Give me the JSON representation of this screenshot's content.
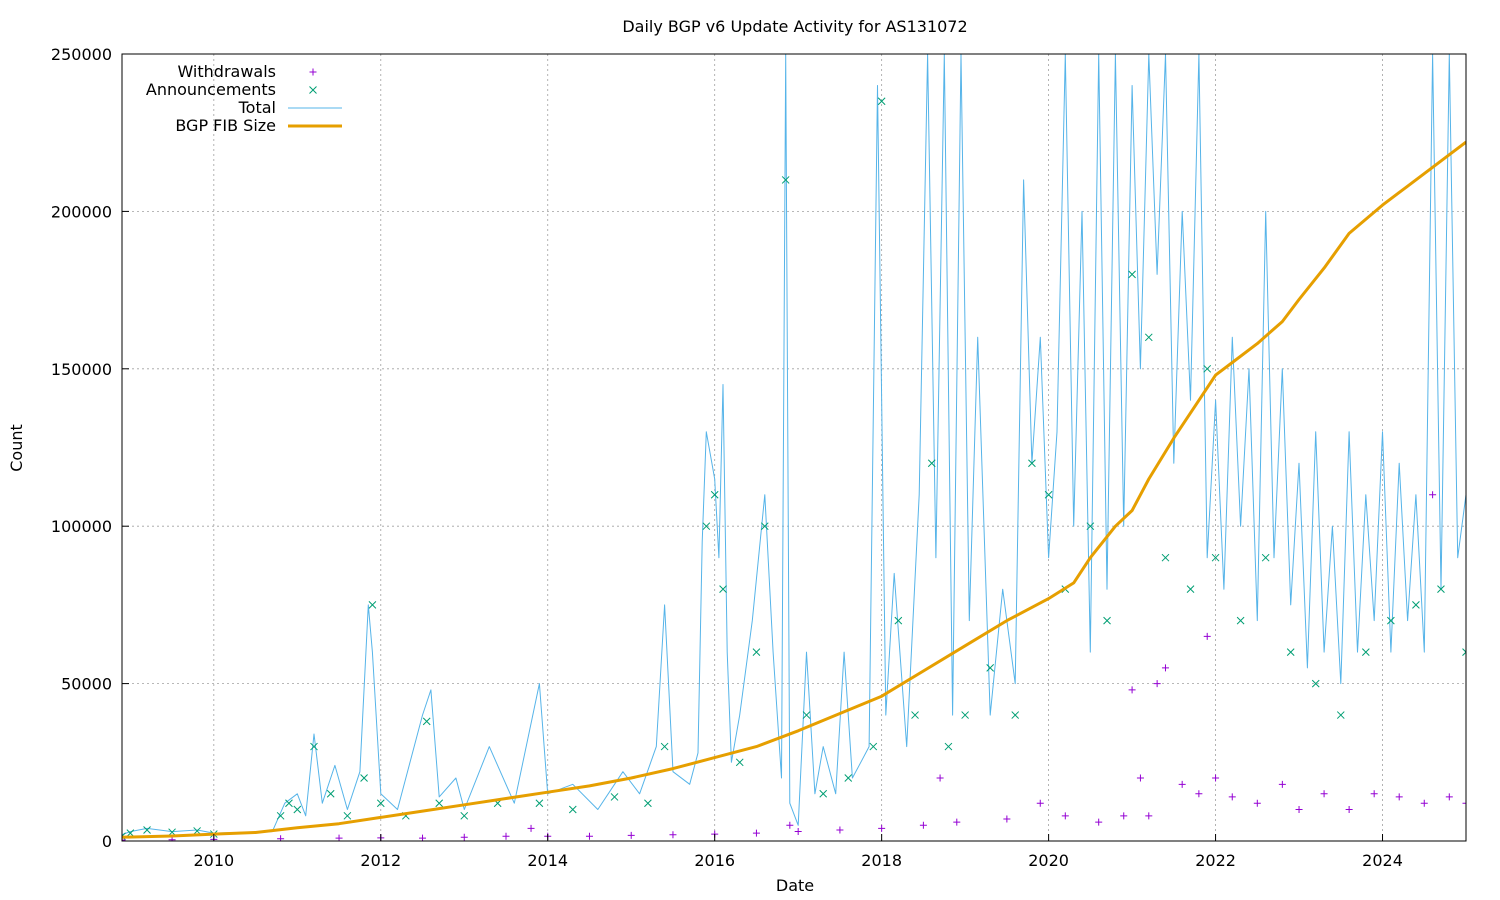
{
  "chart_data": {
    "type": "scatter",
    "title": "Daily BGP v6 Update Activity for AS131072",
    "xlabel": "Date",
    "ylabel": "Count",
    "xlim": [
      2008.9,
      2025.0
    ],
    "ylim": [
      0,
      250000
    ],
    "x_ticks": [
      "2010",
      "2012",
      "2014",
      "2016",
      "2018",
      "2020",
      "2022",
      "2024"
    ],
    "y_ticks": [
      "0",
      "50000",
      "100000",
      "150000",
      "200000",
      "250000"
    ],
    "grid": true,
    "legend_position": "top-left",
    "legend": [
      {
        "label": "Withdrawals",
        "marker": "+",
        "color": "#9400d3"
      },
      {
        "label": "Announcements",
        "marker": "x",
        "color": "#009e73"
      },
      {
        "label": "Total",
        "marker": "line",
        "color": "#56b4e9"
      },
      {
        "label": "BGP FIB Size",
        "marker": "thick-line",
        "color": "#e69f00"
      }
    ],
    "series": [
      {
        "name": "Total",
        "color": "#56b4e9",
        "points": [
          [
            2008.9,
            2000
          ],
          [
            2009.0,
            3000
          ],
          [
            2009.2,
            4000
          ],
          [
            2009.5,
            3000
          ],
          [
            2009.8,
            3500
          ],
          [
            2010.0,
            2500
          ],
          [
            2010.7,
            3000
          ],
          [
            2010.85,
            12000
          ],
          [
            2011.0,
            15000
          ],
          [
            2011.1,
            8000
          ],
          [
            2011.2,
            34000
          ],
          [
            2011.3,
            12000
          ],
          [
            2011.45,
            24000
          ],
          [
            2011.6,
            10000
          ],
          [
            2011.75,
            22000
          ],
          [
            2011.85,
            75000
          ],
          [
            2011.9,
            60000
          ],
          [
            2012.0,
            15000
          ],
          [
            2012.2,
            10000
          ],
          [
            2012.5,
            40000
          ],
          [
            2012.6,
            48000
          ],
          [
            2012.7,
            14000
          ],
          [
            2012.9,
            20000
          ],
          [
            2013.0,
            10000
          ],
          [
            2013.3,
            30000
          ],
          [
            2013.6,
            12000
          ],
          [
            2013.9,
            50000
          ],
          [
            2014.0,
            15000
          ],
          [
            2014.3,
            18000
          ],
          [
            2014.6,
            10000
          ],
          [
            2014.9,
            22000
          ],
          [
            2015.1,
            15000
          ],
          [
            2015.3,
            30000
          ],
          [
            2015.4,
            75000
          ],
          [
            2015.5,
            22000
          ],
          [
            2015.7,
            18000
          ],
          [
            2015.8,
            28000
          ],
          [
            2015.85,
            95000
          ],
          [
            2015.9,
            130000
          ],
          [
            2016.0,
            115000
          ],
          [
            2016.05,
            90000
          ],
          [
            2016.1,
            145000
          ],
          [
            2016.15,
            60000
          ],
          [
            2016.2,
            25000
          ],
          [
            2016.3,
            40000
          ],
          [
            2016.45,
            70000
          ],
          [
            2016.6,
            110000
          ],
          [
            2016.7,
            60000
          ],
          [
            2016.8,
            20000
          ],
          [
            2016.85,
            250000
          ],
          [
            2016.9,
            12000
          ],
          [
            2017.0,
            5000
          ],
          [
            2017.1,
            60000
          ],
          [
            2017.2,
            15000
          ],
          [
            2017.3,
            30000
          ],
          [
            2017.45,
            15000
          ],
          [
            2017.55,
            60000
          ],
          [
            2017.65,
            20000
          ],
          [
            2017.75,
            25000
          ],
          [
            2017.85,
            30000
          ],
          [
            2017.95,
            240000
          ],
          [
            2018.05,
            40000
          ],
          [
            2018.15,
            85000
          ],
          [
            2018.3,
            30000
          ],
          [
            2018.45,
            110000
          ],
          [
            2018.55,
            250000
          ],
          [
            2018.65,
            90000
          ],
          [
            2018.75,
            250000
          ],
          [
            2018.85,
            40000
          ],
          [
            2018.95,
            250000
          ],
          [
            2019.05,
            70000
          ],
          [
            2019.15,
            160000
          ],
          [
            2019.3,
            40000
          ],
          [
            2019.45,
            80000
          ],
          [
            2019.6,
            50000
          ],
          [
            2019.7,
            210000
          ],
          [
            2019.8,
            120000
          ],
          [
            2019.9,
            160000
          ],
          [
            2020.0,
            90000
          ],
          [
            2020.1,
            130000
          ],
          [
            2020.2,
            250000
          ],
          [
            2020.3,
            100000
          ],
          [
            2020.4,
            200000
          ],
          [
            2020.5,
            60000
          ],
          [
            2020.6,
            250000
          ],
          [
            2020.7,
            80000
          ],
          [
            2020.8,
            250000
          ],
          [
            2020.9,
            100000
          ],
          [
            2021.0,
            240000
          ],
          [
            2021.1,
            150000
          ],
          [
            2021.2,
            250000
          ],
          [
            2021.3,
            180000
          ],
          [
            2021.4,
            250000
          ],
          [
            2021.5,
            120000
          ],
          [
            2021.6,
            200000
          ],
          [
            2021.7,
            140000
          ],
          [
            2021.8,
            250000
          ],
          [
            2021.9,
            90000
          ],
          [
            2022.0,
            140000
          ],
          [
            2022.1,
            80000
          ],
          [
            2022.2,
            160000
          ],
          [
            2022.3,
            100000
          ],
          [
            2022.4,
            150000
          ],
          [
            2022.5,
            70000
          ],
          [
            2022.6,
            200000
          ],
          [
            2022.7,
            90000
          ],
          [
            2022.8,
            150000
          ],
          [
            2022.9,
            75000
          ],
          [
            2023.0,
            120000
          ],
          [
            2023.1,
            55000
          ],
          [
            2023.2,
            130000
          ],
          [
            2023.3,
            60000
          ],
          [
            2023.4,
            100000
          ],
          [
            2023.5,
            50000
          ],
          [
            2023.6,
            130000
          ],
          [
            2023.7,
            60000
          ],
          [
            2023.8,
            110000
          ],
          [
            2023.9,
            70000
          ],
          [
            2024.0,
            130000
          ],
          [
            2024.1,
            60000
          ],
          [
            2024.2,
            120000
          ],
          [
            2024.3,
            70000
          ],
          [
            2024.4,
            110000
          ],
          [
            2024.5,
            60000
          ],
          [
            2024.6,
            250000
          ],
          [
            2024.7,
            80000
          ],
          [
            2024.8,
            250000
          ],
          [
            2024.9,
            90000
          ],
          [
            2025.0,
            110000
          ]
        ]
      },
      {
        "name": "Announcements",
        "color": "#009e73",
        "points": [
          [
            2008.9,
            1500
          ],
          [
            2009.0,
            2500
          ],
          [
            2009.2,
            3500
          ],
          [
            2009.5,
            2800
          ],
          [
            2009.8,
            3200
          ],
          [
            2010.0,
            2200
          ],
          [
            2010.8,
            8000
          ],
          [
            2010.9,
            12000
          ],
          [
            2011.0,
            10000
          ],
          [
            2011.2,
            30000
          ],
          [
            2011.4,
            15000
          ],
          [
            2011.6,
            8000
          ],
          [
            2011.8,
            20000
          ],
          [
            2011.9,
            75000
          ],
          [
            2012.0,
            12000
          ],
          [
            2012.3,
            8000
          ],
          [
            2012.55,
            38000
          ],
          [
            2012.7,
            12000
          ],
          [
            2013.0,
            8000
          ],
          [
            2013.4,
            12000
          ],
          [
            2013.9,
            12000
          ],
          [
            2014.3,
            10000
          ],
          [
            2014.8,
            14000
          ],
          [
            2015.2,
            12000
          ],
          [
            2015.4,
            30000
          ],
          [
            2015.9,
            100000
          ],
          [
            2016.0,
            110000
          ],
          [
            2016.1,
            80000
          ],
          [
            2016.3,
            25000
          ],
          [
            2016.5,
            60000
          ],
          [
            2016.6,
            100000
          ],
          [
            2016.85,
            210000
          ],
          [
            2017.1,
            40000
          ],
          [
            2017.3,
            15000
          ],
          [
            2017.6,
            20000
          ],
          [
            2017.9,
            30000
          ],
          [
            2018.0,
            235000
          ],
          [
            2018.2,
            70000
          ],
          [
            2018.4,
            40000
          ],
          [
            2018.6,
            120000
          ],
          [
            2018.8,
            30000
          ],
          [
            2019.0,
            40000
          ],
          [
            2019.3,
            55000
          ],
          [
            2019.6,
            40000
          ],
          [
            2019.8,
            120000
          ],
          [
            2020.0,
            110000
          ],
          [
            2020.2,
            80000
          ],
          [
            2020.5,
            100000
          ],
          [
            2020.7,
            70000
          ],
          [
            2021.0,
            180000
          ],
          [
            2021.2,
            160000
          ],
          [
            2021.4,
            90000
          ],
          [
            2021.7,
            80000
          ],
          [
            2021.9,
            150000
          ],
          [
            2022.0,
            90000
          ],
          [
            2022.3,
            70000
          ],
          [
            2022.6,
            90000
          ],
          [
            2022.9,
            60000
          ],
          [
            2023.2,
            50000
          ],
          [
            2023.5,
            40000
          ],
          [
            2023.8,
            60000
          ],
          [
            2024.1,
            70000
          ],
          [
            2024.4,
            75000
          ],
          [
            2024.7,
            80000
          ],
          [
            2025.0,
            60000
          ]
        ]
      },
      {
        "name": "Withdrawals",
        "color": "#9400d3",
        "points": [
          [
            2008.9,
            300
          ],
          [
            2009.5,
            400
          ],
          [
            2010.0,
            500
          ],
          [
            2010.8,
            700
          ],
          [
            2011.5,
            900
          ],
          [
            2012.0,
            1000
          ],
          [
            2012.5,
            900
          ],
          [
            2013.0,
            1200
          ],
          [
            2013.5,
            1500
          ],
          [
            2013.8,
            4000
          ],
          [
            2014.0,
            1500
          ],
          [
            2014.5,
            1500
          ],
          [
            2015.0,
            1800
          ],
          [
            2015.5,
            2000
          ],
          [
            2016.0,
            2200
          ],
          [
            2016.5,
            2500
          ],
          [
            2016.9,
            5000
          ],
          [
            2017.0,
            3000
          ],
          [
            2017.5,
            3500
          ],
          [
            2018.0,
            4000
          ],
          [
            2018.5,
            5000
          ],
          [
            2018.7,
            20000
          ],
          [
            2018.9,
            6000
          ],
          [
            2019.5,
            7000
          ],
          [
            2019.9,
            12000
          ],
          [
            2020.2,
            8000
          ],
          [
            2020.6,
            6000
          ],
          [
            2020.9,
            8000
          ],
          [
            2021.0,
            48000
          ],
          [
            2021.1,
            20000
          ],
          [
            2021.2,
            8000
          ],
          [
            2021.3,
            50000
          ],
          [
            2021.4,
            55000
          ],
          [
            2021.6,
            18000
          ],
          [
            2021.8,
            15000
          ],
          [
            2021.9,
            65000
          ],
          [
            2022.0,
            20000
          ],
          [
            2022.2,
            14000
          ],
          [
            2022.5,
            12000
          ],
          [
            2022.8,
            18000
          ],
          [
            2023.0,
            10000
          ],
          [
            2023.3,
            15000
          ],
          [
            2023.6,
            10000
          ],
          [
            2023.9,
            15000
          ],
          [
            2024.2,
            14000
          ],
          [
            2024.5,
            12000
          ],
          [
            2024.6,
            110000
          ],
          [
            2024.8,
            14000
          ],
          [
            2025.0,
            12000
          ]
        ]
      },
      {
        "name": "BGP FIB Size",
        "color": "#e69f00",
        "points": [
          [
            2008.9,
            1200
          ],
          [
            2009.5,
            1600
          ],
          [
            2010.0,
            2200
          ],
          [
            2010.5,
            2700
          ],
          [
            2011.0,
            4200
          ],
          [
            2011.5,
            5500
          ],
          [
            2012.0,
            7500
          ],
          [
            2012.5,
            9500
          ],
          [
            2013.0,
            11500
          ],
          [
            2013.5,
            13500
          ],
          [
            2014.0,
            15500
          ],
          [
            2014.5,
            17500
          ],
          [
            2015.0,
            20000
          ],
          [
            2015.5,
            23000
          ],
          [
            2016.0,
            26500
          ],
          [
            2016.5,
            30000
          ],
          [
            2017.0,
            35000
          ],
          [
            2017.5,
            40500
          ],
          [
            2018.0,
            46000
          ],
          [
            2018.5,
            54000
          ],
          [
            2019.0,
            62000
          ],
          [
            2019.5,
            70000
          ],
          [
            2020.0,
            77000
          ],
          [
            2020.3,
            82000
          ],
          [
            2020.5,
            90000
          ],
          [
            2020.8,
            100000
          ],
          [
            2021.0,
            105000
          ],
          [
            2021.2,
            115000
          ],
          [
            2021.5,
            128000
          ],
          [
            2021.8,
            140000
          ],
          [
            2022.0,
            148000
          ],
          [
            2022.2,
            152000
          ],
          [
            2022.5,
            158000
          ],
          [
            2022.8,
            165000
          ],
          [
            2023.0,
            172000
          ],
          [
            2023.3,
            182000
          ],
          [
            2023.6,
            193000
          ],
          [
            2024.0,
            202000
          ],
          [
            2024.3,
            208000
          ],
          [
            2024.6,
            214000
          ],
          [
            2024.8,
            218000
          ],
          [
            2025.0,
            222000
          ]
        ]
      }
    ]
  }
}
